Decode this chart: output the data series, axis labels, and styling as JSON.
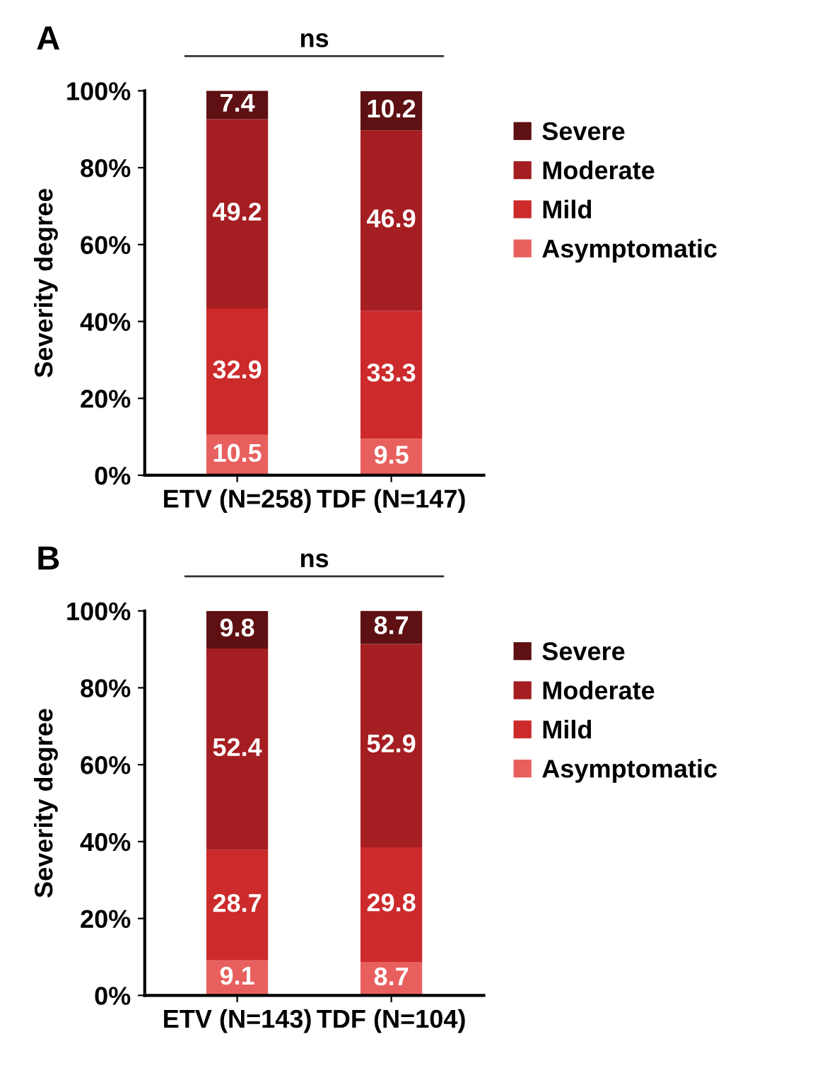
{
  "chart_data": [
    {
      "type": "bar",
      "title": "A",
      "ylabel": "Severity degree",
      "categories": [
        "ETV (N=258)",
        "TDF (N=147)"
      ],
      "stacked": true,
      "data_labels": true,
      "legend": "right",
      "grid": false,
      "ylim": [
        0,
        100
      ],
      "yticks": [
        {
          "value": 0,
          "label": "0%"
        },
        {
          "value": 20,
          "label": "20%"
        },
        {
          "value": 40,
          "label": "40%"
        },
        {
          "value": 60,
          "label": "60%"
        },
        {
          "value": 80,
          "label": "80%"
        },
        {
          "value": 100,
          "label": "100%"
        }
      ],
      "series": [
        {
          "name": "Asymptomatic",
          "color": "#e8605e",
          "values": [
            10.5,
            9.5
          ]
        },
        {
          "name": "Mild",
          "color": "#cc2a2b",
          "values": [
            32.9,
            33.3
          ]
        },
        {
          "name": "Moderate",
          "color": "#a51e22",
          "values": [
            49.2,
            46.9
          ]
        },
        {
          "name": "Severe",
          "color": "#5e1013",
          "values": [
            7.4,
            10.2
          ]
        }
      ],
      "annotations": [
        "ns"
      ]
    },
    {
      "type": "bar",
      "title": "B",
      "ylabel": "Severity degree",
      "categories": [
        "ETV (N=143)",
        "TDF (N=104)"
      ],
      "stacked": true,
      "data_labels": true,
      "legend": "right",
      "grid": false,
      "ylim": [
        0,
        100
      ],
      "yticks": [
        {
          "value": 0,
          "label": "0%"
        },
        {
          "value": 20,
          "label": "20%"
        },
        {
          "value": 40,
          "label": "40%"
        },
        {
          "value": 60,
          "label": "60%"
        },
        {
          "value": 80,
          "label": "80%"
        },
        {
          "value": 100,
          "label": "100%"
        }
      ],
      "series": [
        {
          "name": "Asymptomatic",
          "color": "#e8605e",
          "values": [
            9.1,
            8.7
          ]
        },
        {
          "name": "Mild",
          "color": "#cc2a2b",
          "values": [
            28.7,
            29.8
          ]
        },
        {
          "name": "Moderate",
          "color": "#a51e22",
          "values": [
            52.4,
            52.9
          ]
        },
        {
          "name": "Severe",
          "color": "#5e1013",
          "values": [
            9.8,
            8.7
          ]
        }
      ],
      "annotations": [
        "ns"
      ]
    }
  ]
}
